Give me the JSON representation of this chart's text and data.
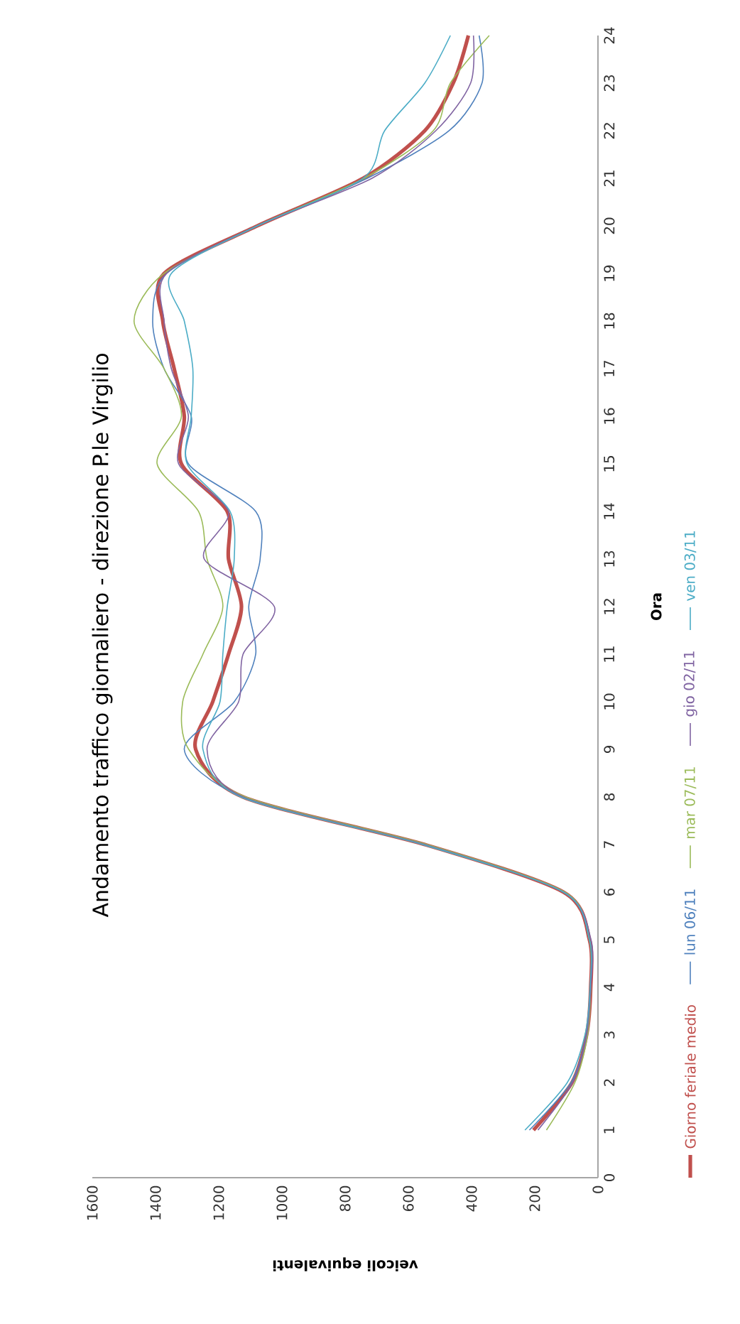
{
  "chart_data": {
    "type": "line",
    "title": "Andamento traffico giornaliero - direzione P.le Virgilio",
    "xlabel": "veicoli equivalenti",
    "ylabel": "Ora",
    "series": [
      {
        "name": "Giorno feriale medio",
        "color": "#c0504d",
        "x": [
          204,
          82,
          36,
          23,
          27,
          109,
          548,
          1123,
          1273,
          1219,
          1169,
          1128,
          1169,
          1173,
          1318,
          1309,
          1341,
          1377,
          1373,
          1078,
          743,
          548,
          458,
          410
        ],
        "values": [
          1,
          2,
          3,
          4,
          5,
          6,
          7,
          8,
          9,
          10,
          11,
          12,
          13,
          14,
          15,
          16,
          17,
          18,
          19,
          20,
          21,
          22,
          23,
          24
        ]
      },
      {
        "name": "lun 06/11",
        "color": "#4f81bd",
        "x": [
          217,
          85,
          36,
          23,
          27,
          109,
          548,
          1123,
          1309,
          1151,
          1083,
          1105,
          1069,
          1083,
          1296,
          1287,
          1373,
          1409,
          1365,
          1078,
          730,
          471,
          367,
          376
        ],
        "values": [
          1,
          2,
          3,
          4,
          5,
          6,
          7,
          8,
          9,
          10,
          11,
          12,
          13,
          14,
          15,
          16,
          17,
          18,
          19,
          20,
          21,
          22,
          23,
          24
        ]
      },
      {
        "name": "mar 07/11",
        "color": "#9bbb59",
        "x": [
          163,
          73,
          33,
          23,
          27,
          105,
          540,
          1115,
          1295,
          1314,
          1250,
          1187,
          1237,
          1264,
          1395,
          1318,
          1373,
          1468,
          1373,
          1078,
          740,
          521,
          467,
          344
        ],
        "values": [
          1,
          2,
          3,
          4,
          5,
          6,
          7,
          8,
          9,
          10,
          11,
          12,
          13,
          14,
          15,
          16,
          17,
          18,
          19,
          20,
          21,
          22,
          23,
          24
        ]
      },
      {
        "name": "gio 02/11",
        "color": "#8064a2",
        "x": [
          190,
          80,
          36,
          23,
          22,
          109,
          548,
          1123,
          1237,
          1137,
          1123,
          1024,
          1246,
          1169,
          1327,
          1296,
          1350,
          1373,
          1365,
          1078,
          715,
          513,
          403,
          394
        ],
        "values": [
          1,
          2,
          3,
          4,
          5,
          6,
          7,
          8,
          9,
          10,
          11,
          12,
          13,
          14,
          15,
          16,
          17,
          18,
          19,
          20,
          21,
          22,
          23,
          24
        ]
      },
      {
        "name": "ven 03/11",
        "color": "#4bacc6",
        "x": [
          231,
          97,
          41,
          25,
          27,
          109,
          555,
          1130,
          1250,
          1196,
          1187,
          1173,
          1151,
          1164,
          1300,
          1287,
          1282,
          1309,
          1350,
          1078,
          743,
          675,
          548,
          467
        ],
        "values": [
          1,
          2,
          3,
          4,
          5,
          6,
          7,
          8,
          9,
          10,
          11,
          12,
          13,
          14,
          15,
          16,
          17,
          18,
          19,
          20,
          21,
          22,
          23,
          24
        ]
      }
    ],
    "xlim": [
      1600,
      0
    ],
    "ylim": [
      0,
      24
    ],
    "xticks": [
      0,
      200,
      400,
      600,
      800,
      1000,
      1200,
      1400,
      1600
    ],
    "yticks": [
      0,
      1,
      2,
      3,
      4,
      5,
      6,
      7,
      8,
      9,
      10,
      11,
      12,
      13,
      14,
      15,
      16,
      17,
      18,
      19,
      20,
      21,
      22,
      23,
      24
    ],
    "legend": "right",
    "grid": false
  }
}
